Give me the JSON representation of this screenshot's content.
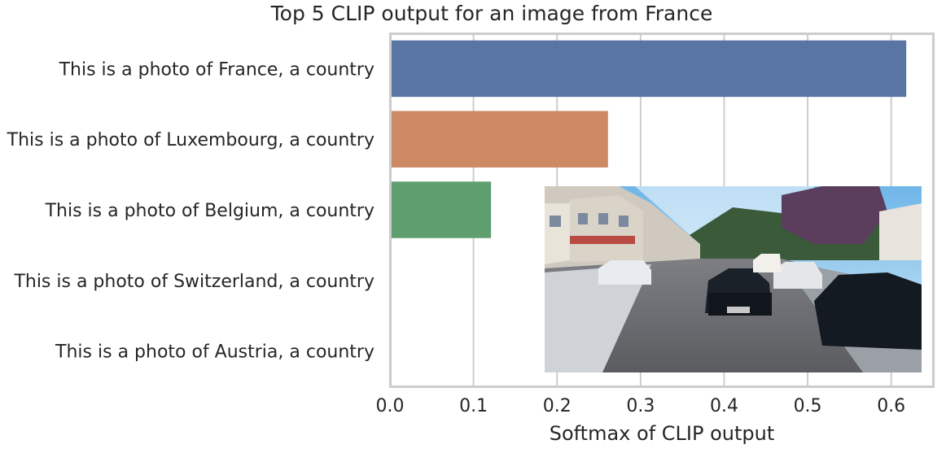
{
  "chart_data": {
    "type": "bar",
    "orientation": "horizontal",
    "title": "Top 5 CLIP output for an image from France",
    "xlabel": "Softmax of CLIP output",
    "ylabel": "",
    "xlim": [
      0.0,
      0.65
    ],
    "xticks": [
      "0.0",
      "0.1",
      "0.2",
      "0.3",
      "0.4",
      "0.5",
      "0.6"
    ],
    "categories": [
      "This is a photo of France, a country",
      "This is a photo of Luxembourg, a country",
      "This is a photo of Belgium, a country",
      "This is a photo of Switzerland, a country",
      "This is a photo of Austria, a country"
    ],
    "values": [
      0.618,
      0.261,
      0.121,
      0.0,
      0.0
    ],
    "colors": [
      "#5875a4",
      "#cc8963",
      "#5f9e6e",
      "#b55d60",
      "#857aab"
    ],
    "grid": "vertical",
    "inset_image": "street scene in a French town with parked cars and buildings"
  }
}
